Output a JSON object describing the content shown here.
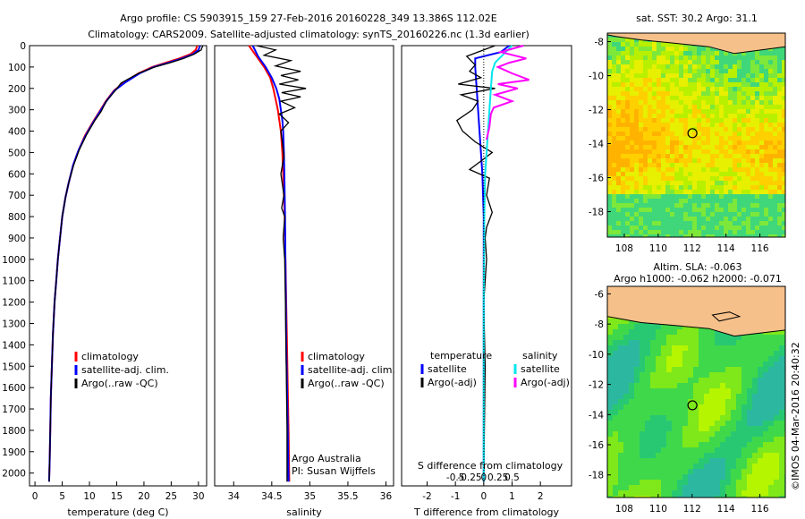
{
  "header": {
    "line1": "Argo profile: CS 5903915_159 27-Feb-2016 20160228_349 13.386S 112.02E",
    "line2": "Climatology: CARS2009. Satellite-adjusted climatology: synTS_20160226.nc (1.3d earlier)"
  },
  "side_stamp": "©IMOS 04-Mar-2016 20:40:32",
  "colors": {
    "climatology": "#ff0000",
    "satellite": "#0000ff",
    "argo": "#000000",
    "satellite_salinity": "#00e5ee",
    "argo_salinity": "#ff00ff"
  },
  "chart_data": [
    {
      "type": "line",
      "id": "temperature",
      "xlabel": "temperature (deg C)",
      "xlim": [
        -1,
        31.5
      ],
      "ylim": [
        2060,
        0
      ],
      "xticks": [
        0,
        5,
        10,
        15,
        20,
        25,
        30
      ],
      "yticks": [
        0,
        100,
        200,
        300,
        400,
        500,
        600,
        700,
        800,
        900,
        1000,
        1100,
        1200,
        1300,
        1400,
        1500,
        1600,
        1700,
        1800,
        1900,
        2000
      ],
      "legend": [
        "climatology",
        "satellite-adj. clim.",
        "Argo(..raw -QC)"
      ],
      "series": [
        {
          "name": "climatology",
          "color": "#ff0000",
          "x": [
            29.8,
            29.5,
            28.5,
            26.5,
            24.0,
            21.5,
            19.0,
            16.5,
            14.5,
            13.0,
            11.8,
            10.8,
            9.2,
            8.0,
            7.0,
            6.2,
            5.6,
            5.0,
            4.6,
            4.2,
            3.9,
            3.6,
            3.3,
            3.1,
            2.9,
            2.8,
            2.7,
            2.6
          ],
          "y": [
            0,
            20,
            40,
            60,
            80,
            100,
            130,
            170,
            210,
            260,
            310,
            350,
            420,
            490,
            560,
            640,
            710,
            800,
            900,
            1000,
            1100,
            1200,
            1350,
            1500,
            1650,
            1800,
            1950,
            2040
          ]
        },
        {
          "name": "satellite-adj. clim.",
          "color": "#0000ff",
          "x": [
            30.3,
            30.0,
            29.0,
            27.0,
            24.5,
            21.8,
            19.2,
            16.7,
            14.6,
            13.1,
            11.9,
            10.9,
            9.3,
            8.0,
            7.0,
            6.2,
            5.6,
            5.0,
            4.6,
            4.2,
            3.9,
            3.6,
            3.3,
            3.1,
            2.9,
            2.8,
            2.7,
            2.6
          ],
          "y": [
            0,
            20,
            40,
            60,
            80,
            100,
            130,
            170,
            210,
            260,
            310,
            350,
            420,
            490,
            560,
            640,
            710,
            800,
            900,
            1000,
            1100,
            1200,
            1350,
            1500,
            1650,
            1800,
            1950,
            2040
          ]
        },
        {
          "name": "Argo(..raw -QC)",
          "color": "#000000",
          "x": [
            30.8,
            30.5,
            29.2,
            27.3,
            24.8,
            22.0,
            19.0,
            15.8,
            14.6,
            13.1,
            12.1,
            11.0,
            9.4,
            8.1,
            7.1,
            6.2,
            5.6,
            5.0,
            4.6,
            4.2,
            3.9,
            3.6,
            3.3,
            3.1,
            2.9,
            2.8,
            2.7,
            2.6
          ],
          "y": [
            0,
            20,
            40,
            60,
            80,
            100,
            130,
            175,
            215,
            260,
            310,
            350,
            420,
            490,
            560,
            640,
            710,
            800,
            900,
            1000,
            1100,
            1200,
            1350,
            1500,
            1650,
            1800,
            1950,
            2040
          ]
        }
      ]
    },
    {
      "type": "line",
      "id": "salinity",
      "xlabel": "salinity",
      "xlim": [
        33.75,
        36.1
      ],
      "ylim": [
        2060,
        0
      ],
      "xticks": [
        34,
        34.5,
        35,
        35.5,
        36
      ],
      "legend": [
        "climatology",
        "satellite-adj. clim.",
        "Argo(..raw -QC)"
      ],
      "annotation": [
        "Argo Australia",
        "PI: Susan Wijffels"
      ],
      "series": [
        {
          "name": "climatology",
          "color": "#ff0000",
          "x": [
            34.2,
            34.3,
            34.4,
            34.48,
            34.52,
            34.55,
            34.58,
            34.6,
            34.62,
            34.64,
            34.65,
            34.66,
            34.67,
            34.68,
            34.69,
            34.7,
            34.71,
            34.72,
            34.73
          ],
          "y": [
            0,
            50,
            100,
            150,
            200,
            250,
            300,
            350,
            400,
            500,
            600,
            700,
            800,
            1000,
            1200,
            1400,
            1600,
            1800,
            2040
          ]
        },
        {
          "name": "satellite-adj. clim.",
          "color": "#0000ff",
          "x": [
            34.25,
            34.32,
            34.42,
            34.5,
            34.56,
            34.6,
            34.62,
            34.64,
            34.65,
            34.66,
            34.665,
            34.67,
            34.675,
            34.68,
            34.685,
            34.69,
            34.7,
            34.71,
            34.72
          ],
          "y": [
            0,
            50,
            100,
            150,
            200,
            250,
            300,
            350,
            400,
            500,
            600,
            700,
            800,
            1000,
            1200,
            1400,
            1600,
            1800,
            2040
          ]
        },
        {
          "name": "Argo(..raw -QC)",
          "color": "#000000",
          "x": [
            34.3,
            34.55,
            34.4,
            34.75,
            34.55,
            34.88,
            34.62,
            34.85,
            34.6,
            34.95,
            34.63,
            34.88,
            34.62,
            34.8,
            34.6,
            34.72,
            34.62,
            34.64,
            34.66,
            34.62,
            34.66,
            34.63,
            34.67,
            34.65,
            34.67,
            34.68,
            34.69,
            34.7,
            34.7
          ],
          "y": [
            0,
            20,
            45,
            70,
            95,
            120,
            140,
            160,
            180,
            200,
            220,
            240,
            260,
            290,
            320,
            360,
            400,
            450,
            520,
            600,
            700,
            760,
            800,
            900,
            1000,
            1200,
            1500,
            1800,
            2040
          ]
        }
      ]
    },
    {
      "type": "line",
      "id": "difference",
      "xlabel": "T difference from climatology",
      "xlabel_top": "S difference from climatology",
      "xlim": [
        -2.9,
        3.1
      ],
      "ylim": [
        2060,
        0
      ],
      "xticks": [
        -2,
        -1,
        0,
        1,
        2
      ],
      "xticks_s": [
        -0.5,
        -0.25,
        0,
        0.25,
        0.5
      ],
      "legend_t": {
        "title": "temperature",
        "items": [
          "satellite",
          "Argo(-adj)"
        ]
      },
      "legend_s": {
        "title": "salinity",
        "items": [
          "satellite",
          "Argo(-adj)"
        ]
      },
      "series": [
        {
          "name": "satellite (T)",
          "color": "#0000ff",
          "x": [
            0.9,
            0.6,
            -0.3,
            -0.3,
            -0.25,
            -0.2,
            -0.15,
            -0.1,
            -0.05,
            0.0,
            0.0,
            0.0,
            0.0
          ],
          "y": [
            0,
            30,
            60,
            100,
            200,
            300,
            400,
            500,
            600,
            800,
            1000,
            1500,
            2040
          ]
        },
        {
          "name": "Argo(-adj) (T)",
          "color": "#000000",
          "x": [
            0.4,
            -0.6,
            -0.3,
            -0.5,
            -0.1,
            -0.9,
            0.4,
            -0.8,
            -0.2,
            -0.4,
            -0.95,
            -0.75,
            -0.3,
            0.3,
            -0.1,
            -0.5,
            0.2,
            0.1,
            0.3,
            0.1,
            0.05,
            0.1,
            0.0,
            0.05,
            0.0
          ],
          "y": [
            0,
            50,
            90,
            120,
            150,
            180,
            200,
            230,
            260,
            300,
            350,
            400,
            450,
            500,
            540,
            580,
            620,
            700,
            780,
            850,
            900,
            1000,
            1200,
            1500,
            2040
          ]
        },
        {
          "name": "satellite (S)",
          "color": "#00e5ee",
          "x": [
            1.0,
            0.7,
            0.4,
            0.3,
            0.25,
            0.2,
            0.15,
            0.1,
            0.05,
            0.02,
            0.0,
            0.0
          ],
          "y": [
            0,
            40,
            80,
            120,
            200,
            300,
            400,
            500,
            600,
            800,
            1200,
            2040
          ]
        },
        {
          "name": "Argo(-adj) (S)",
          "color": "#ff00ff",
          "x": [
            1.4,
            0.6,
            1.5,
            0.9,
            0.5,
            1.0,
            1.6,
            0.5,
            1.2,
            0.4,
            1.0,
            0.35,
            0.25,
            0.2,
            0.1
          ],
          "y": [
            0,
            30,
            60,
            80,
            100,
            130,
            160,
            180,
            200,
            230,
            260,
            290,
            320,
            380,
            440
          ]
        }
      ]
    },
    {
      "type": "heatmap",
      "id": "sst-map",
      "title": "sat. SST: 30.2  Argo: 31.1",
      "xlim": [
        107,
        117.5
      ],
      "ylim": [
        -19.5,
        -7.5
      ],
      "xticks": [
        108,
        110,
        112,
        114,
        116
      ],
      "yticks": [
        -8,
        -10,
        -12,
        -14,
        -16,
        -18
      ],
      "marker": {
        "lon": 112.02,
        "lat": -13.386
      }
    },
    {
      "type": "heatmap",
      "id": "sla-map",
      "title_lines": [
        "Altim. SLA: -0.063",
        "Argo h1000: -0.062 h2000: -0.071"
      ],
      "xlim": [
        107,
        117.5
      ],
      "ylim": [
        -19.5,
        -5.5
      ],
      "xticks": [
        108,
        110,
        112,
        114,
        116
      ],
      "yticks": [
        -6,
        -8,
        -10,
        -12,
        -14,
        -16,
        -18
      ],
      "marker": {
        "lon": 112.02,
        "lat": -13.386
      }
    }
  ]
}
